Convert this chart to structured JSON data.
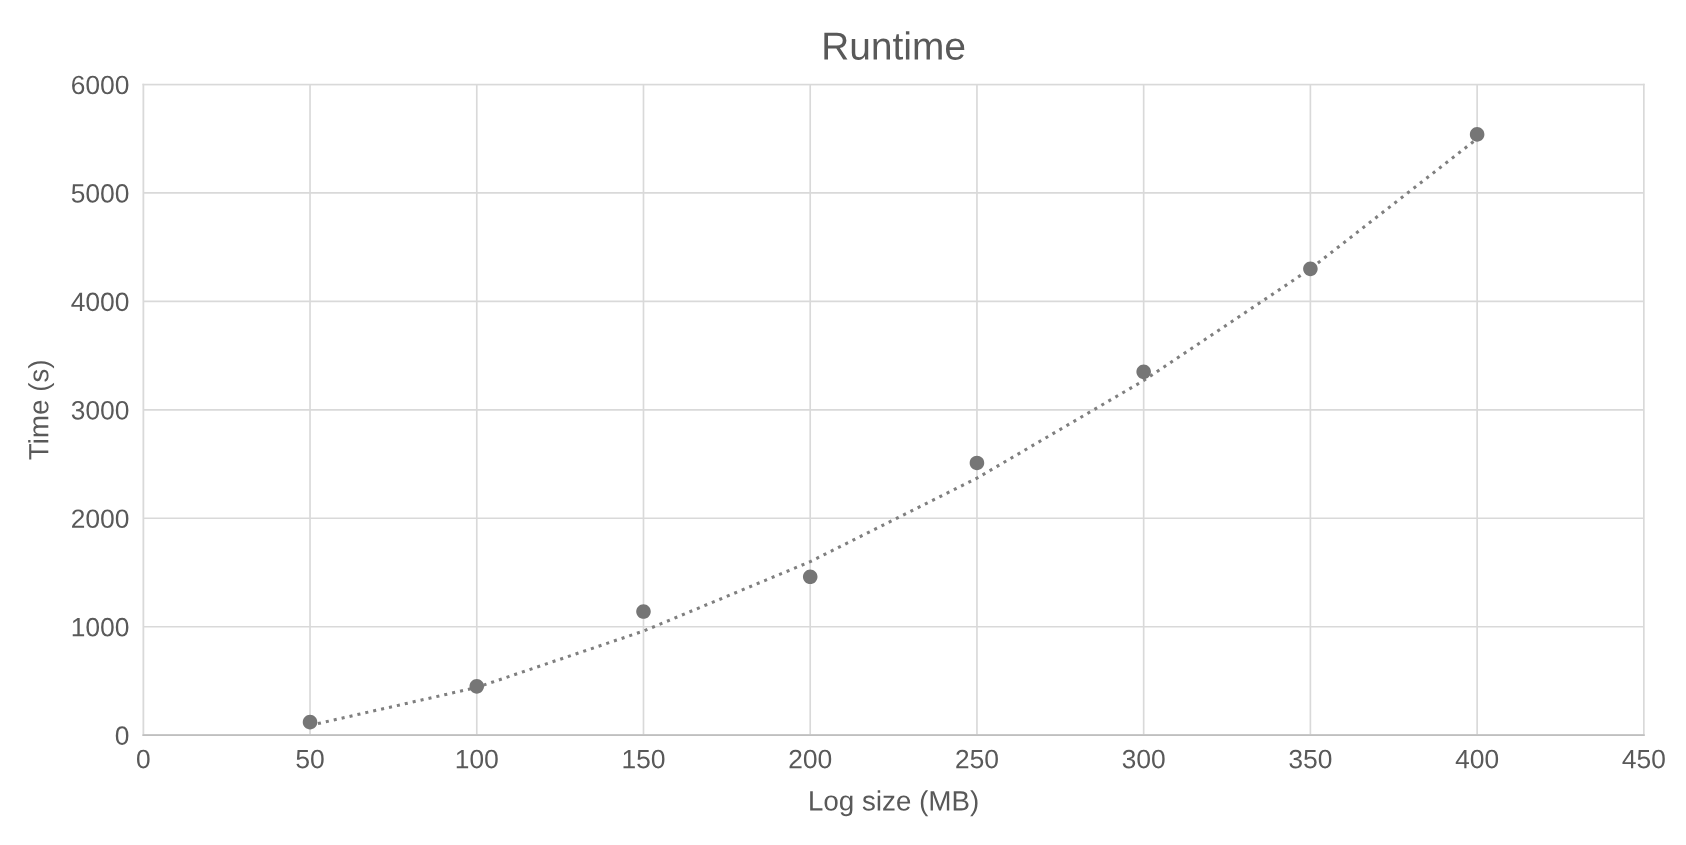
{
  "chart_data": {
    "type": "scatter",
    "title": "Runtime",
    "xlabel": "Log size (MB)",
    "ylabel": "Time (s)",
    "x": [
      50,
      100,
      150,
      200,
      250,
      300,
      350,
      400
    ],
    "series": [
      {
        "color": "#767676",
        "marker": "circle",
        "values": [
          120,
          450,
          1140,
          1460,
          2510,
          3350,
          4300,
          5540
        ]
      },
      {
        "type": "line",
        "color": "#7f7f7f",
        "line_style": "dotted",
        "marker": "none",
        "x": [
          50,
          100,
          150,
          200,
          250,
          300,
          350,
          400
        ],
        "values": [
          90,
          440,
          960,
          1600,
          2370,
          3270,
          4300,
          5500
        ]
      }
    ],
    "xlim": [
      0,
      450
    ],
    "xticks": [
      0,
      50,
      100,
      150,
      200,
      250,
      300,
      350,
      400,
      450
    ],
    "ylim": [
      0,
      6000
    ],
    "yticks": [
      0,
      1000,
      2000,
      3000,
      4000,
      5000,
      6000
    ],
    "grid": true
  }
}
